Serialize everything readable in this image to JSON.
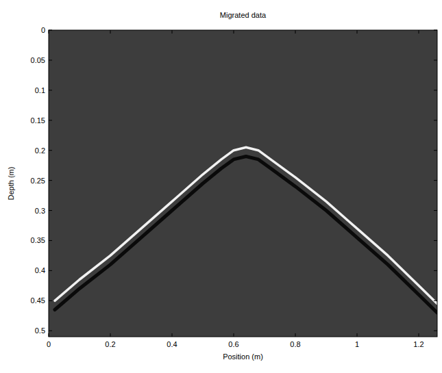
{
  "chart_data": {
    "type": "line",
    "title": "Migrated data",
    "x_label": "Position (m)",
    "y_label": "Depth (m)",
    "x": [
      0.02,
      0.1,
      0.2,
      0.3,
      0.4,
      0.5,
      0.56,
      0.6,
      0.64,
      0.68,
      0.72,
      0.8,
      0.9,
      1.0,
      1.1,
      1.2,
      1.26
    ],
    "series": [
      {
        "color": "#0a0a0a",
        "values": [
          0.465,
          0.43,
          0.39,
          0.345,
          0.3,
          0.255,
          0.23,
          0.215,
          0.21,
          0.215,
          0.23,
          0.26,
          0.3,
          0.345,
          0.39,
          0.44,
          0.47
        ]
      },
      {
        "color": "#f2f2f2",
        "values": [
          0.45,
          0.415,
          0.375,
          0.33,
          0.285,
          0.24,
          0.215,
          0.2,
          0.195,
          0.2,
          0.215,
          0.245,
          0.285,
          0.33,
          0.375,
          0.425,
          0.455
        ]
      }
    ],
    "xlim": [
      0,
      1.26
    ],
    "ylim": [
      0,
      0.51
    ],
    "xticks": [
      0,
      0.2,
      0.4,
      0.6,
      0.8,
      1,
      1.2
    ],
    "yticks": [
      0,
      0.05,
      0.1,
      0.15,
      0.2,
      0.25,
      0.3,
      0.35,
      0.4,
      0.45,
      0.5
    ],
    "grid": false
  }
}
